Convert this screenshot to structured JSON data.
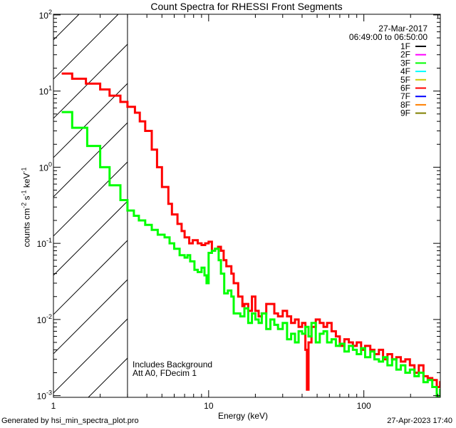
{
  "chart_data": {
    "type": "line",
    "title": "Count Spectra for RHESSI Front Segments",
    "xlabel": "Energy (keV)",
    "ylabel": {
      "pre": "counts cm",
      "e1": "-2",
      "mid": " s",
      "e2": "-1",
      "mid2": " keV",
      "e3": "-1"
    },
    "xscale": "log",
    "yscale": "log",
    "xlim": [
      1,
      311
    ],
    "ylim": [
      0.00095,
      102
    ],
    "xticks": [
      {
        "value": 1,
        "label": "1"
      },
      {
        "value": 10,
        "label": "10"
      },
      {
        "value": 100,
        "label": "100"
      }
    ],
    "yticks": [
      {
        "value": 100,
        "base": "10",
        "exp": "2"
      },
      {
        "value": 10,
        "base": "10",
        "exp": "1"
      },
      {
        "value": 1,
        "base": "10",
        "exp": "0"
      },
      {
        "value": 0.1,
        "base": "10",
        "exp": "-1"
      },
      {
        "value": 0.01,
        "base": "10",
        "exp": "-2"
      },
      {
        "value": 0.001,
        "base": "10",
        "exp": "-3"
      }
    ],
    "hatched_region_max_energy": 3.0,
    "date": "27-Mar-2017",
    "time_range": "06:49:00 to 06:50:00",
    "legend": {
      "placement": "top-right",
      "entries": [
        {
          "label": "1F",
          "color": "#000000"
        },
        {
          "label": "2F",
          "color": "#ff00ff"
        },
        {
          "label": "3F",
          "color": "#00ff00"
        },
        {
          "label": "4F",
          "color": "#00ffff"
        },
        {
          "label": "5F",
          "color": "#cccc00"
        },
        {
          "label": "6F",
          "color": "#ff0000"
        },
        {
          "label": "7F",
          "color": "#0000ff"
        },
        {
          "label": "8F",
          "color": "#ff8000"
        },
        {
          "label": "9F",
          "color": "#808000"
        }
      ]
    },
    "annotations": [
      "Includes Background",
      "Att A0, FDecim 1"
    ],
    "series": [
      {
        "name": "6F",
        "color": "#ff0000",
        "points": [
          [
            1.13,
            17
          ],
          [
            1.32,
            14.5
          ],
          [
            1.62,
            12.5
          ],
          [
            2.0,
            10.5
          ],
          [
            2.3,
            8.7
          ],
          [
            2.7,
            7.2
          ],
          [
            3.0,
            6.2
          ],
          [
            3.35,
            5.2
          ],
          [
            3.6,
            4.0
          ],
          [
            3.9,
            3.0
          ],
          [
            4.3,
            1.7
          ],
          [
            4.65,
            1.0
          ],
          [
            5.0,
            0.55
          ],
          [
            5.5,
            0.33
          ],
          [
            5.8,
            0.24
          ],
          [
            6.3,
            0.18
          ],
          [
            6.7,
            0.145
          ],
          [
            7.0,
            0.12
          ],
          [
            7.5,
            0.1
          ],
          [
            7.9,
            0.11
          ],
          [
            8.5,
            0.1
          ],
          [
            9.0,
            0.095
          ],
          [
            9.5,
            0.1
          ],
          [
            10.0,
            0.105
          ],
          [
            10.5,
            0.08
          ],
          [
            11.0,
            0.085
          ],
          [
            11.5,
            0.09
          ],
          [
            12.0,
            0.08
          ],
          [
            12.5,
            0.06
          ],
          [
            13.0,
            0.05
          ],
          [
            14.0,
            0.04
          ],
          [
            14.5,
            0.03
          ],
          [
            15.5,
            0.02
          ],
          [
            16.5,
            0.015
          ],
          [
            17,
            0.016
          ],
          [
            18,
            0.013
          ],
          [
            19,
            0.02
          ],
          [
            20,
            0.013
          ],
          [
            21,
            0.011
          ],
          [
            22,
            0.012
          ],
          [
            23.5,
            0.016
          ],
          [
            25,
            0.016
          ],
          [
            26.5,
            0.012
          ],
          [
            28,
            0.011
          ],
          [
            30,
            0.013
          ],
          [
            32,
            0.011
          ],
          [
            34,
            0.009
          ],
          [
            36,
            0.01
          ],
          [
            38,
            0.008
          ],
          [
            40,
            0.009
          ],
          [
            42,
            0.004
          ],
          [
            43,
            0.0012
          ],
          [
            44,
            0.005
          ],
          [
            46,
            0.008
          ],
          [
            49,
            0.01
          ],
          [
            52,
            0.009
          ],
          [
            55,
            0.008
          ],
          [
            58,
            0.009
          ],
          [
            62,
            0.007
          ],
          [
            66,
            0.006
          ],
          [
            70,
            0.0045
          ],
          [
            75,
            0.0055
          ],
          [
            80,
            0.005
          ],
          [
            85,
            0.0045
          ],
          [
            90,
            0.005
          ],
          [
            96,
            0.004
          ],
          [
            102,
            0.0045
          ],
          [
            110,
            0.004
          ],
          [
            117,
            0.0035
          ],
          [
            125,
            0.004
          ],
          [
            133,
            0.003
          ],
          [
            142,
            0.0035
          ],
          [
            152,
            0.003
          ],
          [
            162,
            0.0032
          ],
          [
            173,
            0.0028
          ],
          [
            185,
            0.003
          ],
          [
            198,
            0.0025
          ],
          [
            212,
            0.002
          ],
          [
            226,
            0.0025
          ],
          [
            242,
            0.0018
          ],
          [
            258,
            0.0017
          ],
          [
            276,
            0.0016
          ],
          [
            295,
            0.0013
          ],
          [
            310,
            0.0015
          ]
        ]
      },
      {
        "name": "3F",
        "color": "#00ff00",
        "points": [
          [
            1.13,
            5.3
          ],
          [
            1.32,
            3.3
          ],
          [
            1.65,
            1.9
          ],
          [
            2.0,
            1.0
          ],
          [
            2.3,
            0.58
          ],
          [
            2.7,
            0.37
          ],
          [
            3.0,
            0.27
          ],
          [
            3.3,
            0.23
          ],
          [
            3.55,
            0.2
          ],
          [
            3.9,
            0.175
          ],
          [
            4.3,
            0.15
          ],
          [
            4.7,
            0.13
          ],
          [
            5.2,
            0.12
          ],
          [
            5.6,
            0.1
          ],
          [
            6.0,
            0.085
          ],
          [
            6.5,
            0.07
          ],
          [
            7.0,
            0.065
          ],
          [
            7.3,
            0.07
          ],
          [
            7.6,
            0.058
          ],
          [
            8.1,
            0.045
          ],
          [
            8.5,
            0.042
          ],
          [
            9.0,
            0.048
          ],
          [
            9.4,
            0.038
          ],
          [
            9.7,
            0.03
          ],
          [
            10.0,
            0.075
          ],
          [
            10.5,
            0.08
          ],
          [
            11.0,
            0.085
          ],
          [
            11.6,
            0.06
          ],
          [
            12.0,
            0.04
          ],
          [
            12.6,
            0.022
          ],
          [
            13.3,
            0.024
          ],
          [
            14.0,
            0.02
          ],
          [
            14.5,
            0.012
          ],
          [
            15,
            0.012
          ],
          [
            16,
            0.011
          ],
          [
            17,
            0.014
          ],
          [
            18,
            0.009
          ],
          [
            19,
            0.012
          ],
          [
            20,
            0.01
          ],
          [
            21,
            0.009
          ],
          [
            22,
            0.012
          ],
          [
            23.5,
            0.0075
          ],
          [
            25,
            0.01
          ],
          [
            26.5,
            0.0085
          ],
          [
            28,
            0.0075
          ],
          [
            30,
            0.009
          ],
          [
            32,
            0.0055
          ],
          [
            34,
            0.0065
          ],
          [
            36,
            0.005
          ],
          [
            38,
            0.007
          ],
          [
            40,
            0.0065
          ],
          [
            42,
            0.008
          ],
          [
            44,
            0.006
          ],
          [
            46,
            0.009
          ],
          [
            49,
            0.005
          ],
          [
            52,
            0.0065
          ],
          [
            55,
            0.007
          ],
          [
            58,
            0.005
          ],
          [
            62,
            0.0055
          ],
          [
            66,
            0.0045
          ],
          [
            70,
            0.0048
          ],
          [
            75,
            0.0038
          ],
          [
            80,
            0.0045
          ],
          [
            85,
            0.004
          ],
          [
            90,
            0.0035
          ],
          [
            96,
            0.0042
          ],
          [
            102,
            0.0032
          ],
          [
            110,
            0.0038
          ],
          [
            117,
            0.003
          ],
          [
            125,
            0.0028
          ],
          [
            133,
            0.0032
          ],
          [
            142,
            0.0025
          ],
          [
            152,
            0.003
          ],
          [
            162,
            0.0022
          ],
          [
            173,
            0.0025
          ],
          [
            185,
            0.002
          ],
          [
            198,
            0.0022
          ],
          [
            212,
            0.0018
          ],
          [
            226,
            0.002
          ],
          [
            242,
            0.0015
          ],
          [
            258,
            0.0016
          ],
          [
            276,
            0.0013
          ],
          [
            295,
            0.0009
          ],
          [
            310,
            0.0012
          ]
        ]
      }
    ]
  },
  "footer": {
    "generated_by": "Generated by hsi_min_spectra_plot.pro",
    "timestamp": "27-Apr-2023 17:40"
  }
}
